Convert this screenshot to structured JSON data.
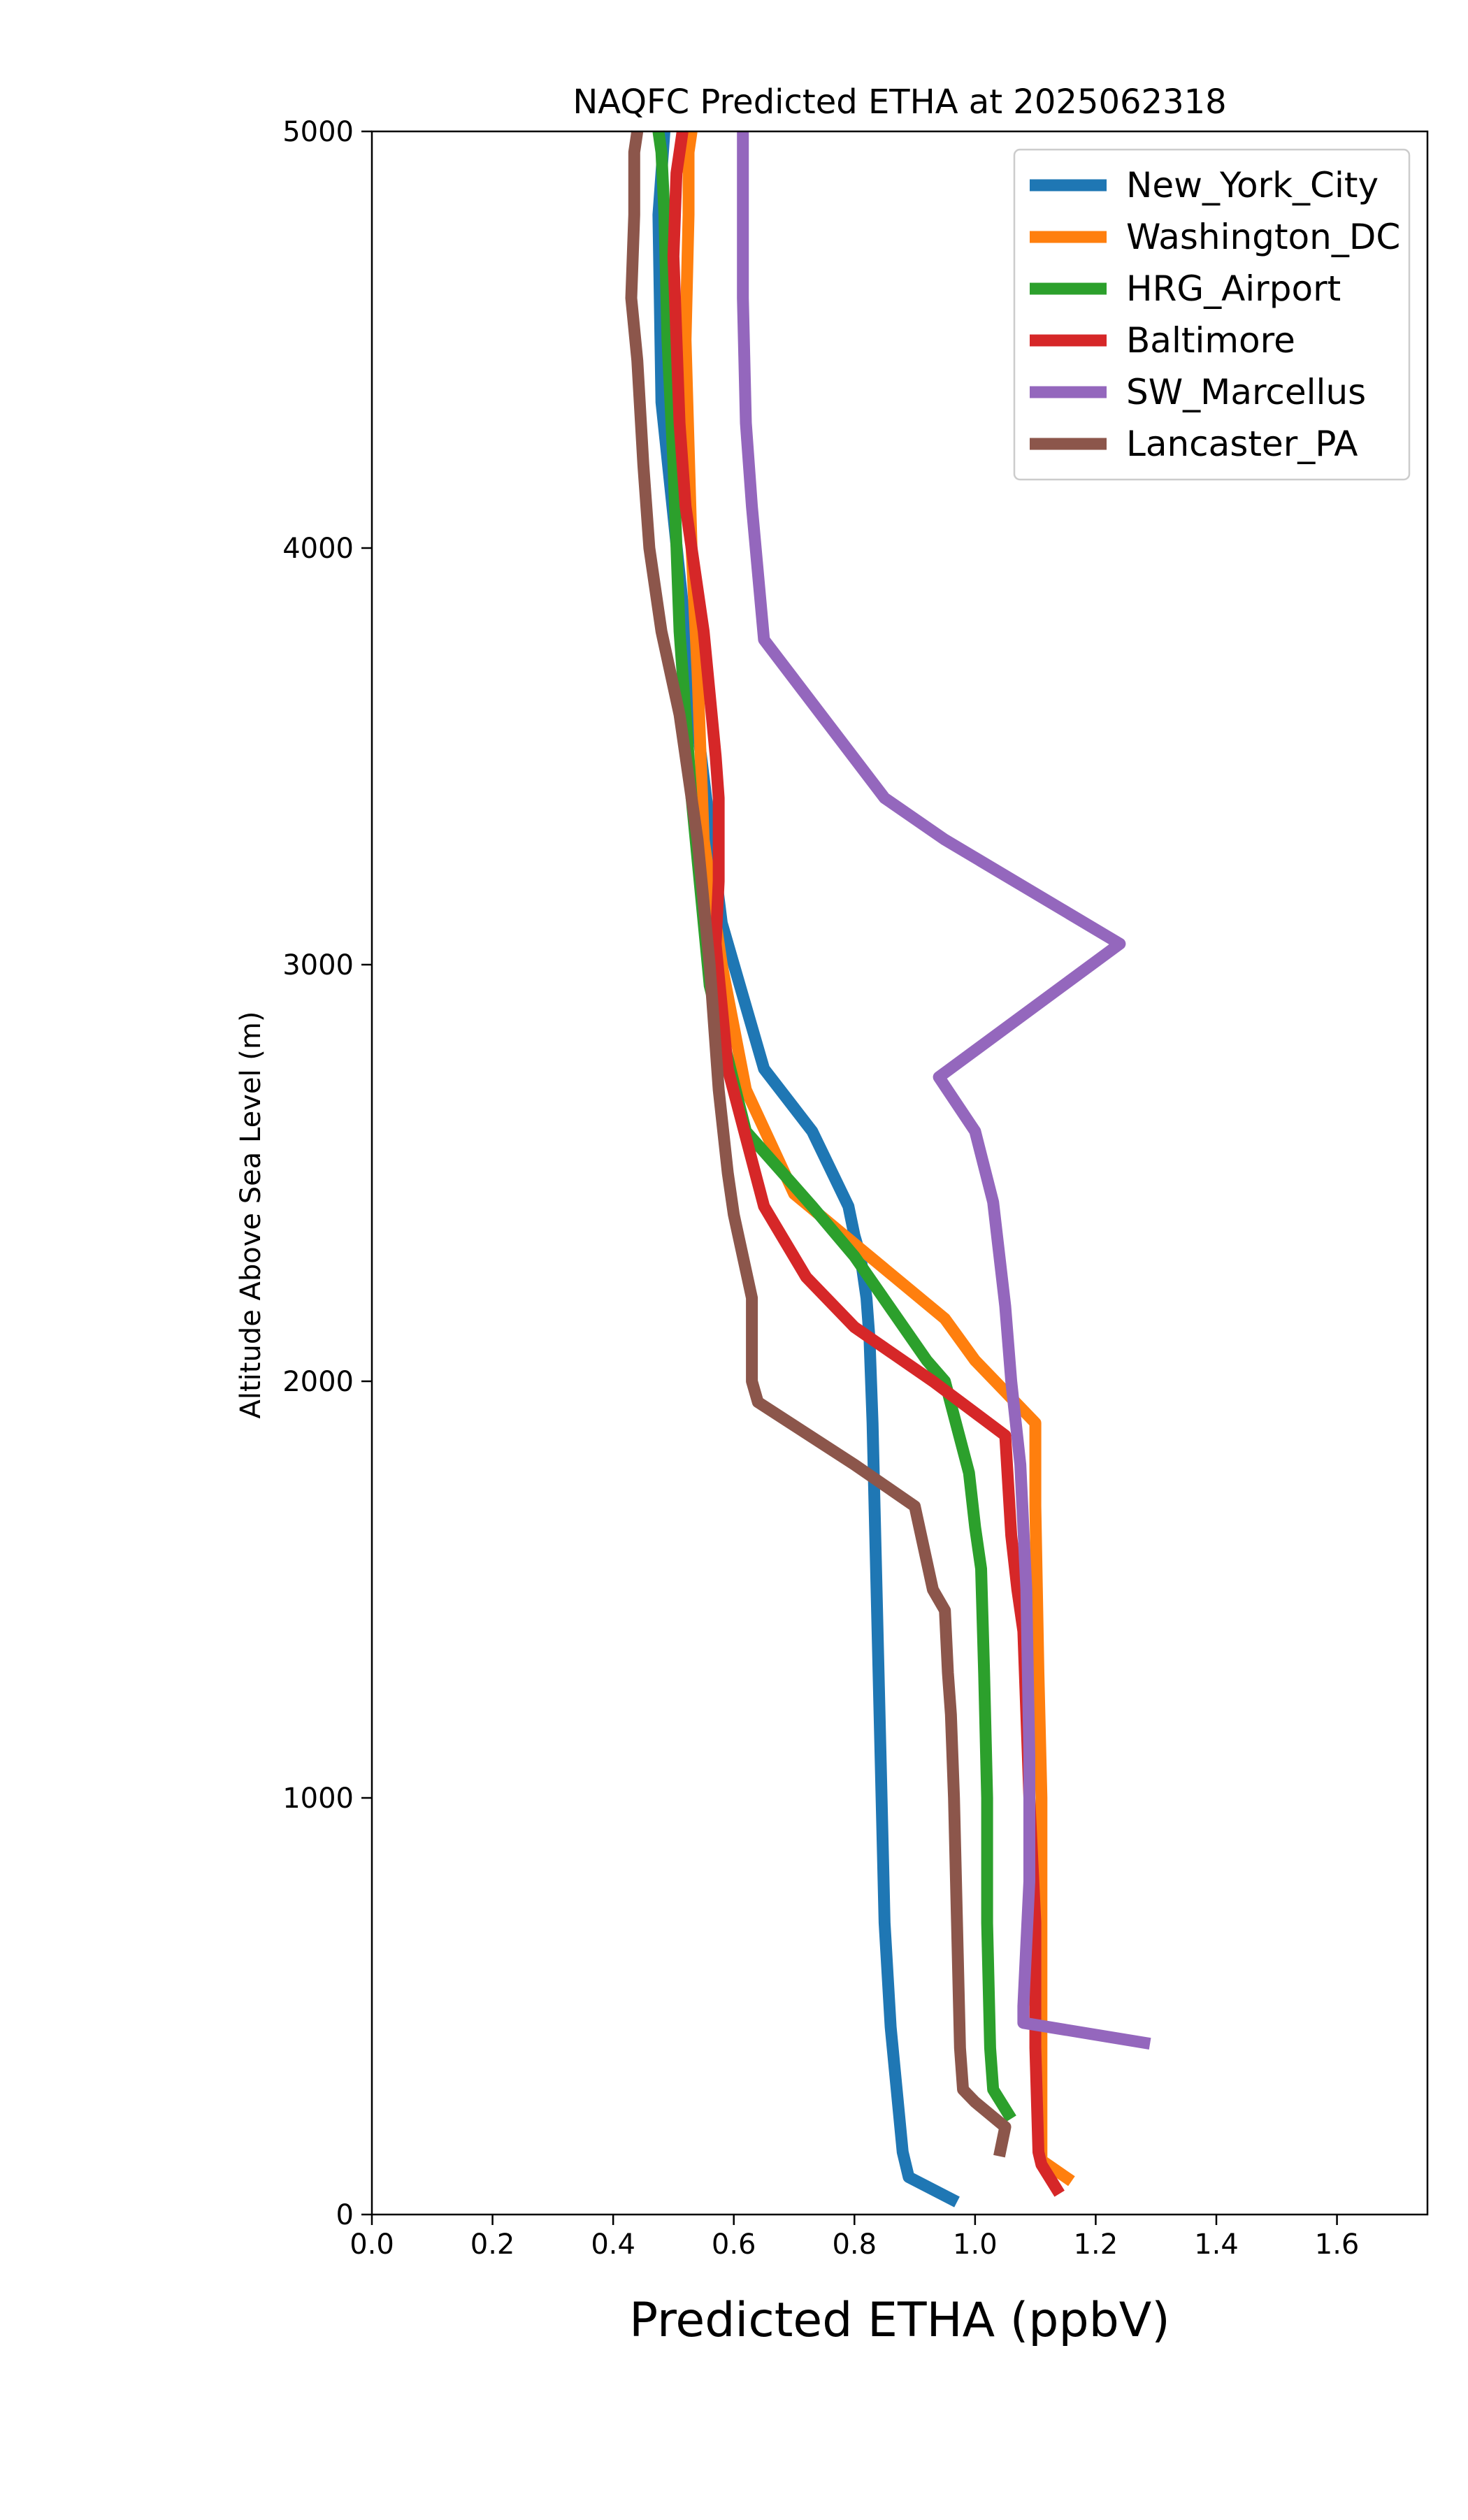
{
  "chart_data": {
    "type": "line",
    "title": "NAQFC Predicted ETHA at 2025062318",
    "xlabel": "Predicted ETHA (ppbV)",
    "ylabel": "Altitude Above Sea Level (m)",
    "xlim": [
      0.0,
      1.75
    ],
    "ylim": [
      0,
      5000
    ],
    "xticks": [
      "0.0",
      "0.2",
      "0.4",
      "0.6",
      "0.8",
      "1.0",
      "1.2",
      "1.4",
      "1.6"
    ],
    "yticks": [
      "0",
      "1000",
      "2000",
      "3000",
      "4000",
      "5000"
    ],
    "grid": false,
    "legend_position": "upper right",
    "series": [
      {
        "name": "New_York_City",
        "color": "#1f77b4",
        "x": [
          0.97,
          0.89,
          0.88,
          0.87,
          0.86,
          0.85,
          0.845,
          0.84,
          0.835,
          0.83,
          0.825,
          0.82,
          0.81,
          0.8,
          0.79,
          0.73,
          0.65,
          0.58,
          0.52,
          0.48,
          0.475,
          0.48,
          0.485
        ],
        "y": [
          30,
          90,
          150,
          300,
          450,
          700,
          1000,
          1300,
          1600,
          1900,
          2100,
          2200,
          2300,
          2350,
          2420,
          2600,
          2750,
          3100,
          3800,
          4350,
          4800,
          4900,
          5000
        ]
      },
      {
        "name": "Washington_DC",
        "color": "#ff7f0e",
        "x": [
          1.16,
          1.11,
          1.11,
          1.11,
          1.11,
          1.105,
          1.1,
          1.1,
          1.0,
          0.95,
          0.7,
          0.62,
          0.58,
          0.55,
          0.54,
          0.53,
          0.52,
          0.525,
          0.525,
          0.53
        ],
        "y": [
          80,
          130,
          300,
          600,
          1000,
          1300,
          1700,
          1900,
          2050,
          2150,
          2450,
          2700,
          3000,
          3300,
          3700,
          4000,
          4500,
          4800,
          4950,
          5000
        ]
      },
      {
        "name": "HRG_Airport",
        "color": "#2ca02c",
        "x": [
          1.06,
          1.03,
          1.025,
          1.02,
          1.02,
          1.015,
          1.01,
          1.0,
          0.99,
          0.95,
          0.92,
          0.8,
          0.73,
          0.62,
          0.56,
          0.53,
          0.51,
          0.5,
          0.49,
          0.485,
          0.48,
          0.475
        ],
        "y": [
          230,
          300,
          400,
          700,
          1000,
          1300,
          1550,
          1650,
          1780,
          2000,
          2050,
          2300,
          2420,
          2600,
          2950,
          3400,
          3800,
          4200,
          4500,
          4800,
          4950,
          5000
        ]
      },
      {
        "name": "Baltimore",
        "color": "#d62728",
        "x": [
          1.14,
          1.11,
          1.105,
          1.1,
          1.1,
          1.09,
          1.08,
          1.07,
          1.06,
          1.05,
          0.93,
          0.8,
          0.72,
          0.65,
          0.59,
          0.58,
          0.57,
          0.575,
          0.575,
          0.57,
          0.55,
          0.52,
          0.51,
          0.505,
          0.5,
          0.505,
          0.51,
          0.515
        ],
        "y": [
          50,
          120,
          150,
          400,
          700,
          1000,
          1400,
          1500,
          1630,
          1870,
          2000,
          2130,
          2250,
          2420,
          2750,
          2900,
          3050,
          3200,
          3400,
          3500,
          3800,
          4100,
          4300,
          4500,
          4700,
          4900,
          4950,
          5000
        ]
      },
      {
        "name": "SW_Marcellus",
        "color": "#9467bd",
        "x": [
          1.29,
          1.08,
          1.08,
          1.09,
          1.09,
          1.085,
          1.075,
          1.06,
          1.05,
          1.03,
          1.0,
          0.94,
          1.24,
          0.95,
          0.85,
          0.65,
          0.63,
          0.62,
          0.615,
          0.615,
          0.615
        ],
        "y": [
          410,
          460,
          500,
          800,
          1100,
          1500,
          1800,
          2000,
          2180,
          2430,
          2600,
          2730,
          3050,
          3300,
          3400,
          3780,
          4100,
          4300,
          4600,
          4800,
          5000
        ]
      },
      {
        "name": "Lancaster_PA",
        "color": "#8c564b",
        "x": [
          1.04,
          1.05,
          1.0,
          0.98,
          0.975,
          0.97,
          0.965,
          0.96,
          0.955,
          0.95,
          0.93,
          0.9,
          0.8,
          0.64,
          0.63,
          0.63,
          0.6,
          0.59,
          0.575,
          0.56,
          0.54,
          0.51,
          0.48,
          0.46,
          0.45,
          0.44,
          0.43,
          0.435,
          0.435,
          0.44
        ],
        "y": [
          140,
          210,
          270,
          300,
          400,
          700,
          1000,
          1200,
          1300,
          1450,
          1500,
          1700,
          1800,
          1950,
          2000,
          2200,
          2400,
          2500,
          2700,
          3000,
          3300,
          3600,
          3800,
          4000,
          4200,
          4450,
          4600,
          4800,
          4950,
          5000
        ]
      }
    ]
  }
}
